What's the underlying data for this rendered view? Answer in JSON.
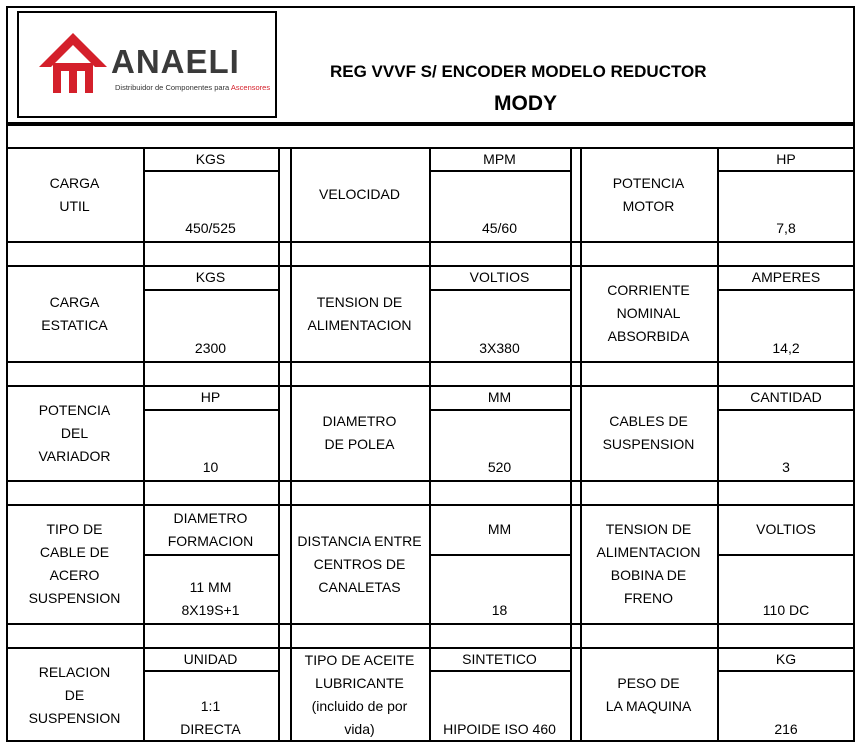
{
  "header": {
    "logo_text": "ANAELI",
    "logo_tagline_start": "Distribuidor de Componentes para ",
    "logo_tagline_accent": "Ascensores",
    "title_line1": "REG VVVF S/ ENCODER MODELO REDUCTOR",
    "title_line2": "MODY"
  },
  "colors": {
    "brand_red": "#d4202b",
    "logo_gray": "#3a3a3a",
    "lines": "#000000"
  },
  "rows": [
    {
      "c1_label": [
        "CARGA",
        "UTIL"
      ],
      "c1_unit": "KGS",
      "c1_value": [
        "450/525"
      ],
      "c2_label": [
        "VELOCIDAD"
      ],
      "c2_unit": "MPM",
      "c2_value": [
        "45/60"
      ],
      "c3_label": [
        "POTENCIA",
        "MOTOR"
      ],
      "c3_unit": "HP",
      "c3_value": [
        "7,8"
      ]
    },
    {
      "c1_label": [
        "CARGA",
        "ESTATICA"
      ],
      "c1_unit": "KGS",
      "c1_value": [
        "2300"
      ],
      "c2_label": [
        "TENSION DE",
        "ALIMENTACION"
      ],
      "c2_unit": "VOLTIOS",
      "c2_value": [
        "3X380"
      ],
      "c3_label": [
        "CORRIENTE",
        "NOMINAL",
        "ABSORBIDA"
      ],
      "c3_unit": "AMPERES",
      "c3_value": [
        "14,2"
      ]
    },
    {
      "c1_label": [
        "POTENCIA",
        "DEL",
        "VARIADOR"
      ],
      "c1_unit": "HP",
      "c1_value": [
        "10"
      ],
      "c2_label": [
        "DIAMETRO",
        "DE POLEA"
      ],
      "c2_unit": "MM",
      "c2_value": [
        "520"
      ],
      "c3_label": [
        "CABLES DE",
        "SUSPENSION"
      ],
      "c3_unit": "CANTIDAD",
      "c3_value": [
        "3"
      ]
    },
    {
      "c1_label": [
        "TIPO DE",
        "CABLE DE",
        "ACERO",
        "SUSPENSION"
      ],
      "c1_unit": [
        "DIAMETRO",
        "FORMACION"
      ],
      "c1_value": [
        "11 MM",
        "8X19S+1"
      ],
      "c2_label": [
        "DISTANCIA ENTRE",
        "CENTROS DE",
        "CANALETAS"
      ],
      "c2_unit": "MM",
      "c2_value": [
        "18"
      ],
      "c3_label": [
        "TENSION DE",
        "ALIMENTACION",
        "BOBINA DE",
        "FRENO"
      ],
      "c3_unit": "VOLTIOS",
      "c3_value": [
        "110 DC"
      ]
    },
    {
      "c1_label": [
        "RELACION",
        "DE",
        "SUSPENSION"
      ],
      "c1_unit": "UNIDAD",
      "c1_value": [
        "1:1",
        "DIRECTA"
      ],
      "c2_label": [
        "TIPO DE ACEITE",
        "LUBRICANTE",
        "(incluido de por",
        "vida)"
      ],
      "c2_unit": "SINTETICO",
      "c2_value": [
        "HIPOIDE ISO 460"
      ],
      "c3_label": [
        "PESO DE",
        "LA MAQUINA"
      ],
      "c3_unit": "KG",
      "c3_value": [
        "216"
      ]
    }
  ]
}
